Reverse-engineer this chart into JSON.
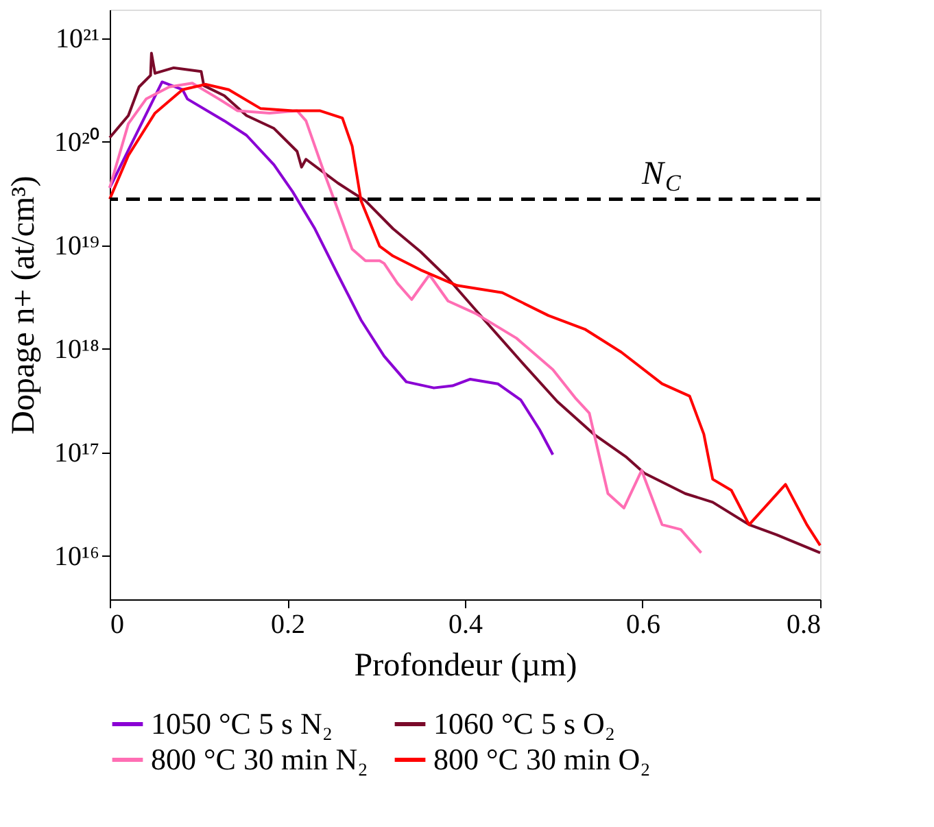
{
  "chart_data": {
    "type": "line",
    "xlabel": "Profondeur (µm)",
    "ylabel": "Dopage n+ (at/cm³)",
    "log": "y",
    "grid": false,
    "legend": "bottom",
    "line_style": "solid",
    "marker": "none",
    "xlim": [
      0,
      0.8
    ],
    "xticks": [
      0,
      0.2,
      0.4,
      0.6,
      0.8
    ],
    "ylim": [
      3800000000000000.0,
      1.9e+21
    ],
    "yticks": [
      {
        "value": 1e+16,
        "label": "10¹⁶"
      },
      {
        "value": 1e+17,
        "label": "10¹⁷"
      },
      {
        "value": 1e+18,
        "label": "10¹⁸"
      },
      {
        "value": 1e+19,
        "label": "10¹⁹"
      },
      {
        "value": 1e+20,
        "label": "10²⁰"
      },
      {
        "value": 1e+21,
        "label": "10²¹"
      }
    ],
    "ref_lines": [
      {
        "axis": "y",
        "value": 2.8e+19,
        "label": "N$_{C}$",
        "color": "#000000",
        "line_style": "dashed"
      }
    ],
    "series": [
      {
        "name": "1050 °C 5 s N₂",
        "color": "#8a00d4",
        "x": [
          0,
          0.059,
          0.082,
          0.0875,
          0.129,
          0.154,
          0.185,
          0.206,
          0.231,
          0.257,
          0.283,
          0.309,
          0.334,
          0.365,
          0.386,
          0.406,
          0.437,
          0.463,
          0.484,
          0.499
        ],
        "values": [
          3.6e+19,
          3.8e+20,
          3.2e+20,
          2.6e+20,
          1.6e+20,
          1.16e+20,
          6e+19,
          3.3e+19,
          1.45e+19,
          5.2e+18,
          1.9e+18,
          8.5e+17,
          4.8e+17,
          4.2e+17,
          4.4e+17,
          5.1e+17,
          4.6e+17,
          3.2e+17,
          1.66e+17,
          9.5e+16
        ]
      },
      {
        "name": "1060 °C 5 s O₂",
        "color": "#7a0a2a",
        "x": [
          0,
          0.021,
          0.033,
          0.046,
          0.047,
          0.051,
          0.072,
          0.103,
          0.106,
          0.129,
          0.154,
          0.185,
          0.211,
          0.216,
          0.221,
          0.257,
          0.288,
          0.319,
          0.35,
          0.381,
          0.422,
          0.463,
          0.504,
          0.545,
          0.581,
          0.602,
          0.648,
          0.679,
          0.72,
          0.751,
          0.8
        ],
        "values": [
          1.1e+20,
          1.8e+20,
          3.4e+20,
          4.4e+20,
          7.2e+20,
          4.6e+20,
          5.2e+20,
          4.8e+20,
          3.5e+20,
          2.8e+20,
          1.8e+20,
          1.35e+20,
          8.1e+19,
          5.7e+19,
          6.8e+19,
          4e+19,
          2.7e+19,
          1.45e+19,
          8.7e+18,
          4.8e+18,
          1.9e+18,
          7.6e+17,
          3.1e+17,
          1.5e+17,
          9.1e+16,
          6.3e+16,
          4e+16,
          3.3e+16,
          2e+16,
          1.6e+16,
          1.07e+16
        ]
      },
      {
        "name": "800 °C 30 min N₂",
        "color": "#ff6eb4",
        "x": [
          0,
          0.021,
          0.041,
          0.067,
          0.093,
          0.123,
          0.144,
          0.18,
          0.211,
          0.221,
          0.242,
          0.257,
          0.273,
          0.288,
          0.304,
          0.309,
          0.324,
          0.34,
          0.36,
          0.381,
          0.412,
          0.458,
          0.499,
          0.525,
          0.54,
          0.561,
          0.579,
          0.599,
          0.622,
          0.643,
          0.666
        ],
        "values": [
          3.6e+19,
          1.5e+20,
          2.6e+20,
          3.4e+20,
          3.7e+20,
          2.6e+20,
          2e+20,
          1.9e+20,
          2e+20,
          1.6e+20,
          4.9e+19,
          2.2e+19,
          9.2e+18,
          7.1e+18,
          7.1e+18,
          6.7e+18,
          4.3e+18,
          3e+18,
          5.2e+18,
          2.9e+18,
          2.2e+18,
          1.27e+18,
          6.3e+17,
          3.3e+17,
          2.4e+17,
          4e+16,
          2.9e+16,
          6.7e+16,
          2e+16,
          1.8e+16,
          1.07e+16
        ]
      },
      {
        "name": "800 °C 30 min O₂",
        "color": "#ff0000",
        "x": [
          0,
          0.021,
          0.051,
          0.082,
          0.108,
          0.134,
          0.17,
          0.206,
          0.237,
          0.262,
          0.273,
          0.283,
          0.304,
          0.319,
          0.35,
          0.391,
          0.442,
          0.494,
          0.535,
          0.576,
          0.622,
          0.653,
          0.669,
          0.679,
          0.7,
          0.72,
          0.761,
          0.785,
          0.8
        ],
        "values": [
          2.8e+19,
          7.4e+19,
          1.9e+20,
          3.2e+20,
          3.6e+20,
          3.2e+20,
          2.1e+20,
          2e+20,
          2e+20,
          1.7e+20,
          9.1e+19,
          2.7e+19,
          9.8e+18,
          7.9e+18,
          5.8e+18,
          4.1e+18,
          3.5e+18,
          2.1e+18,
          1.55e+18,
          9.3e+17,
          4.6e+17,
          3.5e+17,
          1.5e+17,
          5.5e+16,
          4.3e+16,
          2e+16,
          4.9e+16,
          2e+16,
          1.26e+16
        ]
      }
    ]
  }
}
